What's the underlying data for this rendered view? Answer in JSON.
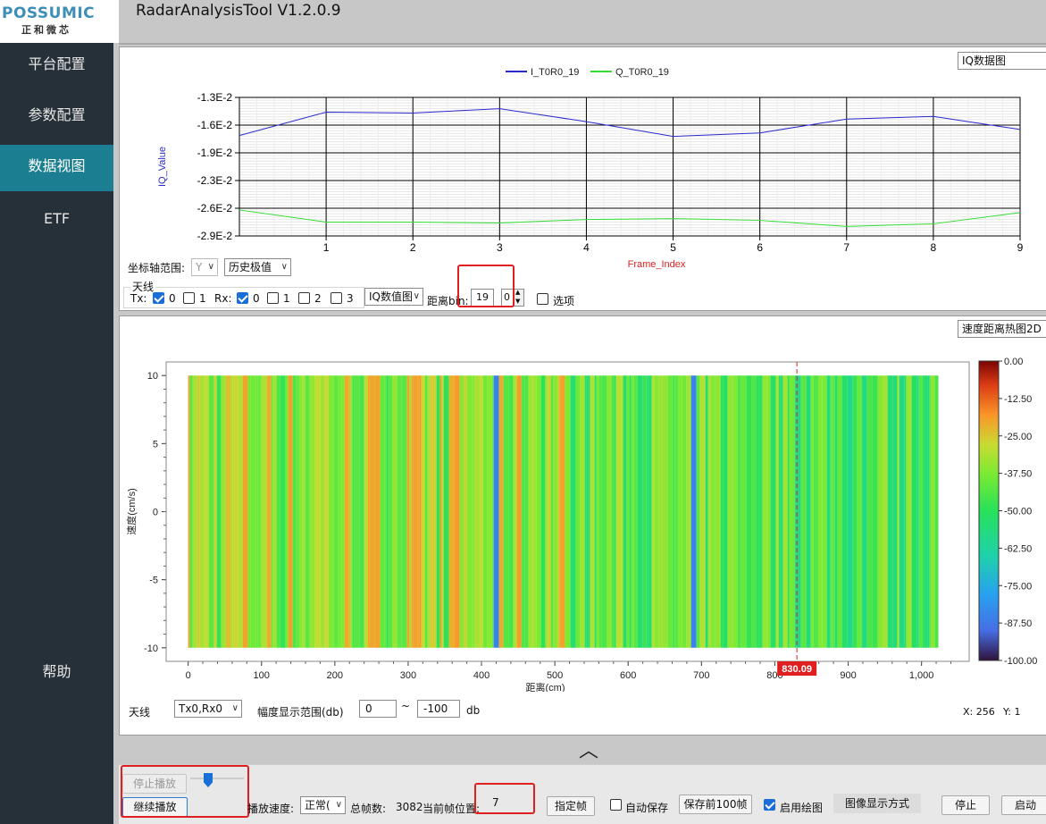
{
  "header": {
    "brand": "POSSUMIC",
    "brand_cn": "正和微芯",
    "title": "RadarAnalysisTool V1.2.0.9"
  },
  "sidebar": {
    "items": [
      {
        "label": "平台配置"
      },
      {
        "label": "参数配置"
      },
      {
        "label": "数据视图",
        "active": true
      },
      {
        "label": "ETF"
      },
      {
        "label": "帮助"
      }
    ]
  },
  "top_panel": {
    "chart_type_select": "IQ数据图",
    "axis_range_label": "坐标轴范围:",
    "axis_select": "Y",
    "range_mode_select": "历史极值",
    "antenna_group": "天线",
    "tx_label": "Tx:",
    "rx_label": "Rx:",
    "tx_options": [
      {
        "label": "0",
        "checked": true
      },
      {
        "label": "1",
        "checked": false
      }
    ],
    "rx_options": [
      {
        "label": "0",
        "checked": true
      },
      {
        "label": "1",
        "checked": false
      },
      {
        "label": "2",
        "checked": false
      },
      {
        "label": "3",
        "checked": false
      }
    ],
    "view_select": "IQ数值图",
    "range_bin_label": "距离bin:",
    "range_bin_value": "19",
    "spin_value": "0",
    "options_label": "选项"
  },
  "iq_chart": {
    "chart_data": {
      "type": "line",
      "x": [
        0,
        1,
        2,
        3,
        4,
        5,
        6,
        7,
        8,
        9
      ],
      "series": [
        {
          "name": "I_T0R0_19",
          "color": "#2a2acc",
          "values": [
            -0.0174,
            -0.0147,
            -0.0148,
            -0.0143,
            -0.0158,
            -0.0175,
            -0.0171,
            -0.0155,
            -0.0152,
            -0.0167
          ]
        },
        {
          "name": "Q_T0R0_19",
          "color": "#33dd33",
          "values": [
            -0.026,
            -0.0274,
            -0.0274,
            -0.0275,
            -0.0271,
            -0.027,
            -0.0272,
            -0.0279,
            -0.0276,
            -0.0263
          ]
        }
      ],
      "xlabel": "Frame_Index",
      "ylabel": "IQ_Value",
      "xticks": [
        "1",
        "2",
        "3",
        "4",
        "5",
        "6",
        "7",
        "8",
        "9"
      ],
      "yticks": [
        "-1.3E-2",
        "-1.6E-2",
        "-1.9E-2",
        "-2.3E-2",
        "-2.6E-2",
        "-2.9E-2"
      ],
      "ylim": [
        -0.029,
        -0.013
      ],
      "xlim": [
        0,
        9
      ],
      "grid": true,
      "legend": "top-center"
    }
  },
  "bottom_panel": {
    "chart_type_select": "速度距离热图2D",
    "heatmap": {
      "chart_data": {
        "type": "heatmap",
        "xlabel": "距离(cm)",
        "ylabel": "速度(cm/s)",
        "xticks": [
          "0",
          "100",
          "200",
          "300",
          "400",
          "500",
          "600",
          "700",
          "800",
          "900",
          "1,000"
        ],
        "yticks": [
          "10",
          "5",
          "0",
          "-5",
          "-10"
        ],
        "xlim": [
          -30,
          1065
        ],
        "ylim": [
          -11,
          11
        ],
        "data_extent_x": [
          0,
          1023
        ],
        "data_extent_y": [
          -10,
          10
        ],
        "colorbar_ticks": [
          "0.00",
          "-12.50",
          "-25.00",
          "-37.50",
          "-50.00",
          "-62.50",
          "-75.00",
          "-87.50",
          "-100.00"
        ],
        "colorbar_range": [
          -100,
          0
        ],
        "cursor_x": 830.09,
        "cursor_label": "830.09"
      }
    },
    "antenna_label": "天线",
    "antenna_select": "Tx0,Rx0",
    "amp_range_label": "幅度显示范围(db)",
    "amp_min": "0",
    "amp_tilde": "~",
    "amp_max": "-100",
    "amp_unit": "db",
    "x_readout": "X: 256",
    "y_readout": "Y: 1"
  },
  "collapse_glyph": "︿",
  "bottom_bar": {
    "stop_play": "停止播放",
    "continue_play": "继续播放",
    "speed_label": "播放速度:",
    "speed_select": "正常(",
    "total_frames_label": "总帧数:",
    "total_frames": "3082",
    "current_pos_label": "当前帧位置:",
    "current_pos": "7",
    "goto_frame": "指定帧",
    "auto_save": "自动保存",
    "save_first": "保存前100帧",
    "enable_plot": "启用绘图",
    "image_mode": "图像显示方式",
    "stop": "停止",
    "start": "启动"
  },
  "colors": {
    "sidebar_bg": "#263038",
    "sidebar_active": "#1c7f91",
    "highlight": "#e02020"
  }
}
